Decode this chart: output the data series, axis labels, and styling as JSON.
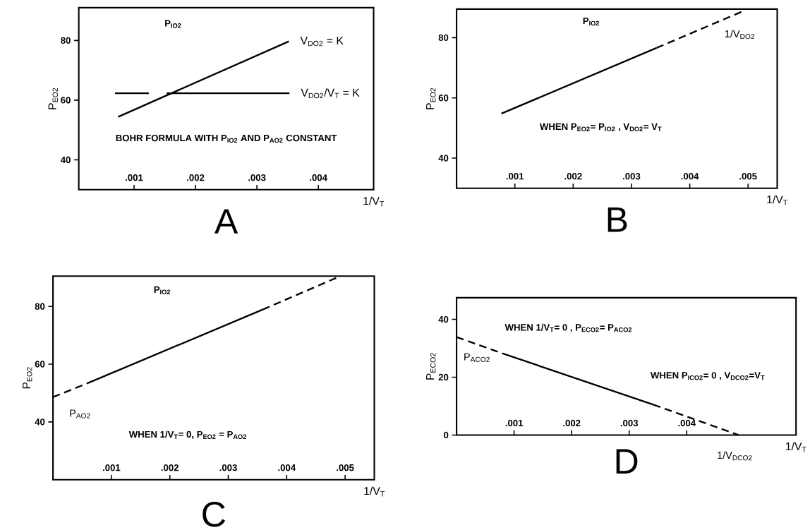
{
  "chart_data": [
    {
      "type": "line",
      "title": "A",
      "xlabel": "1/V$_{T}$",
      "ylabel": "P$_{EO2}$",
      "xlim": [
        0.0001,
        0.0049
      ],
      "ylim": [
        30,
        91
      ],
      "xticks": [
        {
          "value": 0.001,
          "label": ".001"
        },
        {
          "value": 0.002,
          "label": ".002"
        },
        {
          "value": 0.003,
          "label": ".003"
        },
        {
          "value": 0.004,
          "label": ".004"
        }
      ],
      "yticks": [
        40,
        60,
        80
      ],
      "series": [
        {
          "name": "V$_{DO2}$ = K",
          "color": "#000000",
          "line_style": "solid",
          "x": [
            0.00074,
            0.00352
          ],
          "values": [
            54.4,
            79.7
          ]
        },
        {
          "name": "V$_{DO2}$/V$_{T}$ = K",
          "color": "#000000",
          "line_style": "solid",
          "x": [
            0.00069,
            0.00124,
            0.0014,
            0.00153,
            0.00353
          ],
          "values": [
            62.3,
            62.3,
            null,
            62.3,
            62.3
          ]
        }
      ],
      "annotations": [
        "P$_{IO2}$",
        "BOHR FORMULA WITH P$_{IO2}$ AND P$_{AO2}$ CONSTANT"
      ]
    },
    {
      "type": "line",
      "title": "B",
      "xlabel": "1/V$_{T}$",
      "ylabel": "P$_{EO2}$",
      "xlim": [
        0,
        0.0055
      ],
      "ylim": [
        30,
        89.5
      ],
      "xticks": [
        {
          "value": 0.001,
          "label": ".001"
        },
        {
          "value": 0.002,
          "label": ".002"
        },
        {
          "value": 0.003,
          "label": ".003"
        },
        {
          "value": 0.004,
          "label": ".004"
        },
        {
          "value": 0.005,
          "label": ".005"
        }
      ],
      "yticks": [
        40,
        60,
        80
      ],
      "series": [
        {
          "color": "#000000",
          "line_style": "solid",
          "x": [
            0.00077,
            0.00343
          ],
          "values": [
            54.8,
            76.6
          ]
        },
        {
          "color": "#000000",
          "line_style": "dashed",
          "x": [
            0.00343,
            0.00489
          ],
          "values": [
            76.6,
            88.6
          ]
        }
      ],
      "annotations": [
        "P$_{IO2}$",
        {
          "text": "1/V$_{DO2}$",
          "x": 0.00489,
          "y": 88.6
        },
        "WHEN P$_{EO2}$= P$_{IO2}$ , V$_{DO2}$= V$_{T}$"
      ]
    },
    {
      "type": "line",
      "title": "C",
      "xlabel": "1/V$_{T}$",
      "ylabel": "P$_{EO2}$",
      "xlim": [
        0,
        0.0055
      ],
      "ylim": [
        20,
        90.5
      ],
      "xticks": [
        {
          "value": 0.001,
          "label": ".001"
        },
        {
          "value": 0.002,
          "label": ".002"
        },
        {
          "value": 0.003,
          "label": ".003"
        },
        {
          "value": 0.004,
          "label": ".004"
        },
        {
          "value": 0.005,
          "label": ".005"
        }
      ],
      "yticks": [
        40,
        60,
        80
      ],
      "series": [
        {
          "color": "#000000",
          "line_style": "dashed",
          "x": [
            0,
            0.00058
          ],
          "values": [
            48.6,
            53.3
          ]
        },
        {
          "color": "#000000",
          "line_style": "solid",
          "x": [
            0.00058,
            0.00359
          ],
          "values": [
            53.3,
            78.9
          ]
        },
        {
          "color": "#000000",
          "line_style": "dashed",
          "x": [
            0.00359,
            0.00492
          ],
          "values": [
            78.9,
            90.5
          ]
        }
      ],
      "annotations": [
        "P$_{IO2}$",
        {
          "text": "P$_{AO2}$",
          "x": 0,
          "y": 48.6
        },
        "WHEN 1/V$_{T}$= 0, P$_{EO2}$ = P$_{AO2}$"
      ]
    },
    {
      "type": "line",
      "title": "D",
      "xlabel": "1/V$_{T}$",
      "ylabel": "P$_{ECO2}$",
      "xlim": [
        0,
        0.0059
      ],
      "ylim": [
        0,
        47.5
      ],
      "xticks": [
        {
          "value": 0.001,
          "label": ".001"
        },
        {
          "value": 0.002,
          "label": ".002"
        },
        {
          "value": 0.003,
          "label": ".003"
        },
        {
          "value": 0.004,
          "label": ".004"
        }
      ],
      "yticks": [
        0,
        20,
        40
      ],
      "series": [
        {
          "color": "#000000",
          "line_style": "dashed",
          "x": [
            0,
            0.00082
          ],
          "values": [
            33.9,
            28.1
          ]
        },
        {
          "color": "#000000",
          "line_style": "solid",
          "x": [
            0.00082,
            0.00342
          ],
          "values": [
            28.1,
            10.5
          ]
        },
        {
          "color": "#000000",
          "line_style": "dashed",
          "x": [
            0.00342,
            0.0049
          ],
          "values": [
            10.5,
            0
          ]
        }
      ],
      "annotations": [
        "WHEN 1/V$_{T}$= 0 , P$_{ECO2}$= P$_{ACO2}$",
        {
          "text": "P$_{ACO2}$",
          "x": 0,
          "y": 33.9
        },
        "WHEN P$_{ICO2}$= 0 , V$_{DCO2}$=V$_{T}$",
        {
          "text": "1/V$_{DCO2}$",
          "x": 0.0049,
          "y": 0
        }
      ]
    }
  ]
}
